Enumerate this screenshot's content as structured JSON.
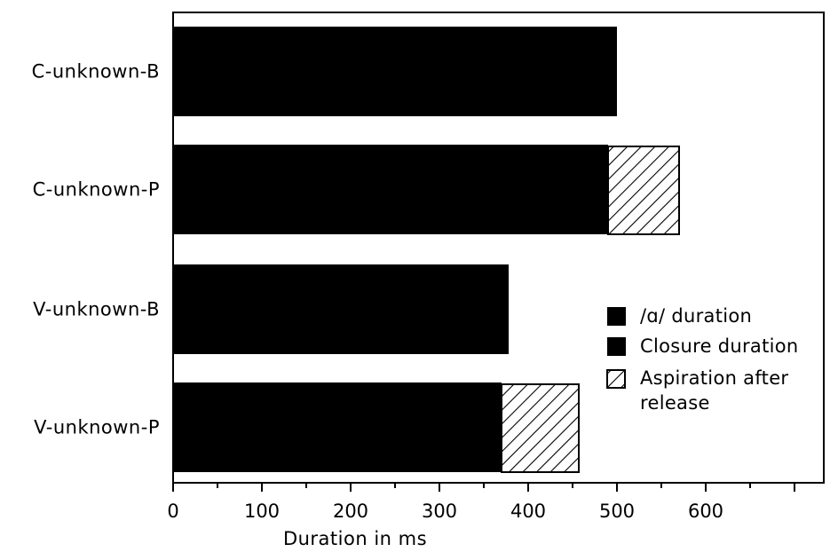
{
  "chart_data": {
    "type": "bar",
    "orientation": "horizontal",
    "stacked": true,
    "categories": [
      "C-unknown-B",
      "C-unknown-P",
      "V-unknown-B",
      "V-unknown-P"
    ],
    "series": [
      {
        "name": "/ɑ/ duration",
        "values": [
          null,
          null,
          null,
          null
        ],
        "color": "#000000"
      },
      {
        "name": "Closure duration",
        "values": [
          500,
          490,
          378,
          370
        ],
        "color": "#000000"
      },
      {
        "name": "Aspiration after release",
        "values": [
          0,
          80,
          0,
          87
        ],
        "color": "#ffffff",
        "pattern": "hatched"
      }
    ],
    "xlabel": "Duration in ms",
    "ylabel": "",
    "xlim": [
      0,
      780
    ],
    "xticks": [
      0,
      100,
      200,
      300,
      400,
      500,
      600
    ],
    "legend_position": "right",
    "grid": false
  }
}
